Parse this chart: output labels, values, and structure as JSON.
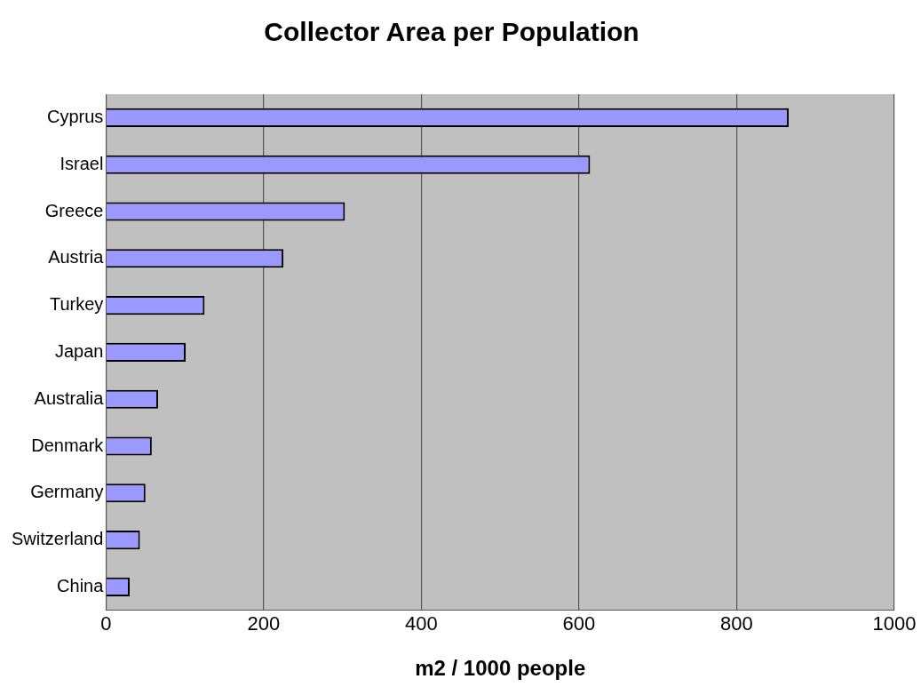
{
  "chart_data": {
    "type": "bar",
    "orientation": "horizontal",
    "title": "Collector Area per Population",
    "xlabel": "m2 / 1000 people",
    "categories": [
      "Cyprus",
      "Israel",
      "Greece",
      "Austria",
      "Turkey",
      "Japan",
      "Australia",
      "Denmark",
      "Germany",
      "Switzerland",
      "China"
    ],
    "values": [
      866,
      614,
      303,
      225,
      125,
      101,
      66,
      58,
      50,
      43,
      30
    ],
    "color": "#9999ff",
    "xlim": [
      0,
      1000
    ],
    "xticks": [
      0,
      200,
      400,
      600,
      800,
      1000
    ],
    "grid": "x",
    "legend": false
  }
}
